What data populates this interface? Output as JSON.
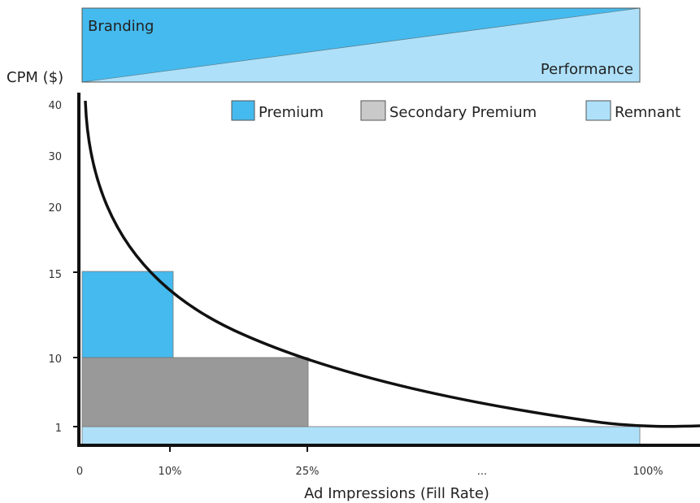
{
  "chart_data": {
    "type": "area",
    "header": {
      "left_label": "Branding",
      "right_label": "Performance",
      "colors": {
        "top": "#45baee",
        "bottom": "#aee0f9"
      }
    },
    "ylabel": "CPM ($)",
    "xlabel": "Ad Impressions (Fill Rate)",
    "y_ticks": [
      "40",
      "30",
      "20",
      "15",
      "10",
      "1"
    ],
    "x_ticks": [
      "0",
      "10%",
      "25%",
      "...",
      "100%"
    ],
    "legend": {
      "placement": "top-right",
      "items": [
        {
          "name": "Premium",
          "color": "#45baee"
        },
        {
          "name": "Secondary Premium",
          "color": "#c9c9c9"
        },
        {
          "name": "Remnant",
          "color": "#aee0f9"
        }
      ]
    },
    "blocks": [
      {
        "name": "Premium",
        "x_from": "0",
        "x_to": "10%",
        "y_from": "10",
        "y_to": "15",
        "color": "#45baee"
      },
      {
        "name": "Secondary Premium",
        "x_from": "0",
        "x_to": "25%",
        "y_from": "1",
        "y_to": "10",
        "color": "#999999"
      },
      {
        "name": "Remnant",
        "x_from": "0",
        "x_to": "100%",
        "y_from": "0",
        "y_to": "1",
        "color": "#aee0f9"
      }
    ],
    "curve": {
      "description_points": [
        {
          "x": "0",
          "y": "40"
        },
        {
          "x": "10%",
          "y": "15"
        },
        {
          "x": "25%",
          "y": "10"
        },
        {
          "x": "100%",
          "y": "1"
        }
      ]
    }
  }
}
